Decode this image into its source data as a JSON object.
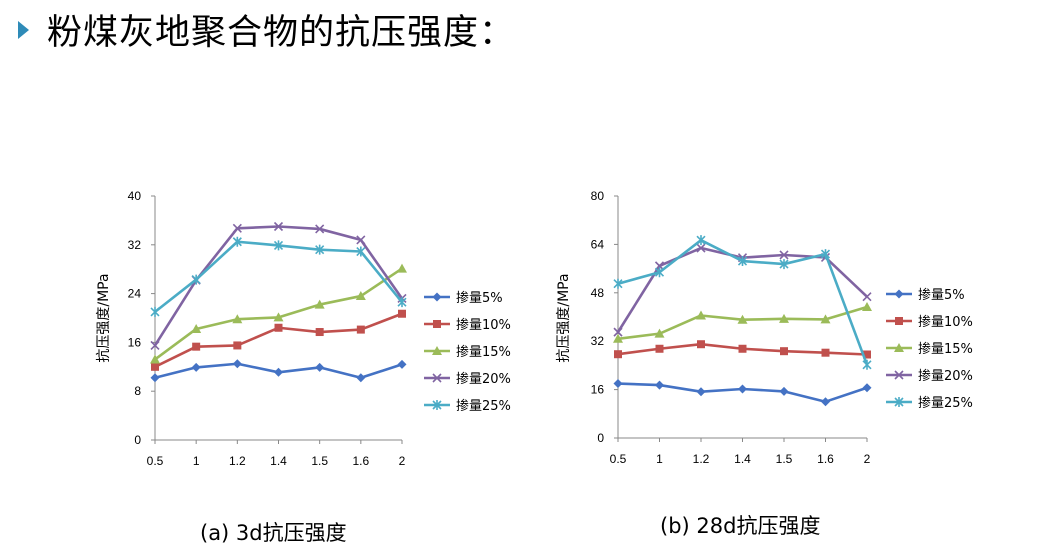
{
  "slide": {
    "title": "粉煤灰地聚合物的抗压强度："
  },
  "chart_data": [
    {
      "type": "line",
      "caption": "(a) 3d抗压强度",
      "ylabel": "抗压强度/MPa",
      "x": [
        "0.5",
        "1",
        "1.2",
        "1.4",
        "1.5",
        "1.6",
        "2"
      ],
      "yticks": [
        "0",
        "8",
        "16",
        "24",
        "32",
        "40"
      ],
      "ylim": [
        0,
        40
      ],
      "legend_position": "right",
      "series": [
        {
          "name": "掺量5%",
          "color": "#4472c4",
          "marker": "diamond",
          "values": [
            10.2,
            11.9,
            12.5,
            11.1,
            11.9,
            10.2,
            12.4
          ]
        },
        {
          "name": "掺量10%",
          "color": "#c0504d",
          "marker": "square",
          "values": [
            12.0,
            15.3,
            15.5,
            18.4,
            17.7,
            18.1,
            20.7
          ]
        },
        {
          "name": "掺量15%",
          "color": "#9bbb59",
          "marker": "triangle",
          "values": [
            13.2,
            18.2,
            19.8,
            20.1,
            22.2,
            23.6,
            28.1
          ]
        },
        {
          "name": "掺量20%",
          "color": "#8064a2",
          "marker": "x",
          "values": [
            15.5,
            26.2,
            34.7,
            35.0,
            34.6,
            32.8,
            23.2
          ]
        },
        {
          "name": "掺量25%",
          "color": "#4bacc6",
          "marker": "star",
          "values": [
            21.0,
            26.3,
            32.5,
            31.9,
            31.2,
            30.9,
            22.6
          ]
        }
      ]
    },
    {
      "type": "line",
      "caption": "(b) 28d抗压强度",
      "ylabel": "抗压强度/MPa",
      "x": [
        "0.5",
        "1",
        "1.2",
        "1.4",
        "1.5",
        "1.6",
        "2"
      ],
      "yticks": [
        "0",
        "16",
        "32",
        "48",
        "64",
        "80"
      ],
      "ylim": [
        0,
        80
      ],
      "legend_position": "right",
      "series": [
        {
          "name": "掺量5%",
          "color": "#4472c4",
          "marker": "diamond",
          "values": [
            18.0,
            17.5,
            15.3,
            16.2,
            15.4,
            12.0,
            16.6
          ]
        },
        {
          "name": "掺量10%",
          "color": "#c0504d",
          "marker": "square",
          "values": [
            27.7,
            29.5,
            31.0,
            29.5,
            28.7,
            28.2,
            27.6
          ]
        },
        {
          "name": "掺量15%",
          "color": "#9bbb59",
          "marker": "triangle",
          "values": [
            32.8,
            34.5,
            40.5,
            39.1,
            39.4,
            39.2,
            43.3
          ]
        },
        {
          "name": "掺量20%",
          "color": "#8064a2",
          "marker": "x",
          "values": [
            35.0,
            56.9,
            62.8,
            59.6,
            60.5,
            59.7,
            46.7
          ]
        },
        {
          "name": "掺量25%",
          "color": "#4bacc6",
          "marker": "star",
          "values": [
            51.0,
            54.8,
            65.4,
            58.5,
            57.5,
            60.8,
            24.2
          ]
        }
      ]
    }
  ]
}
